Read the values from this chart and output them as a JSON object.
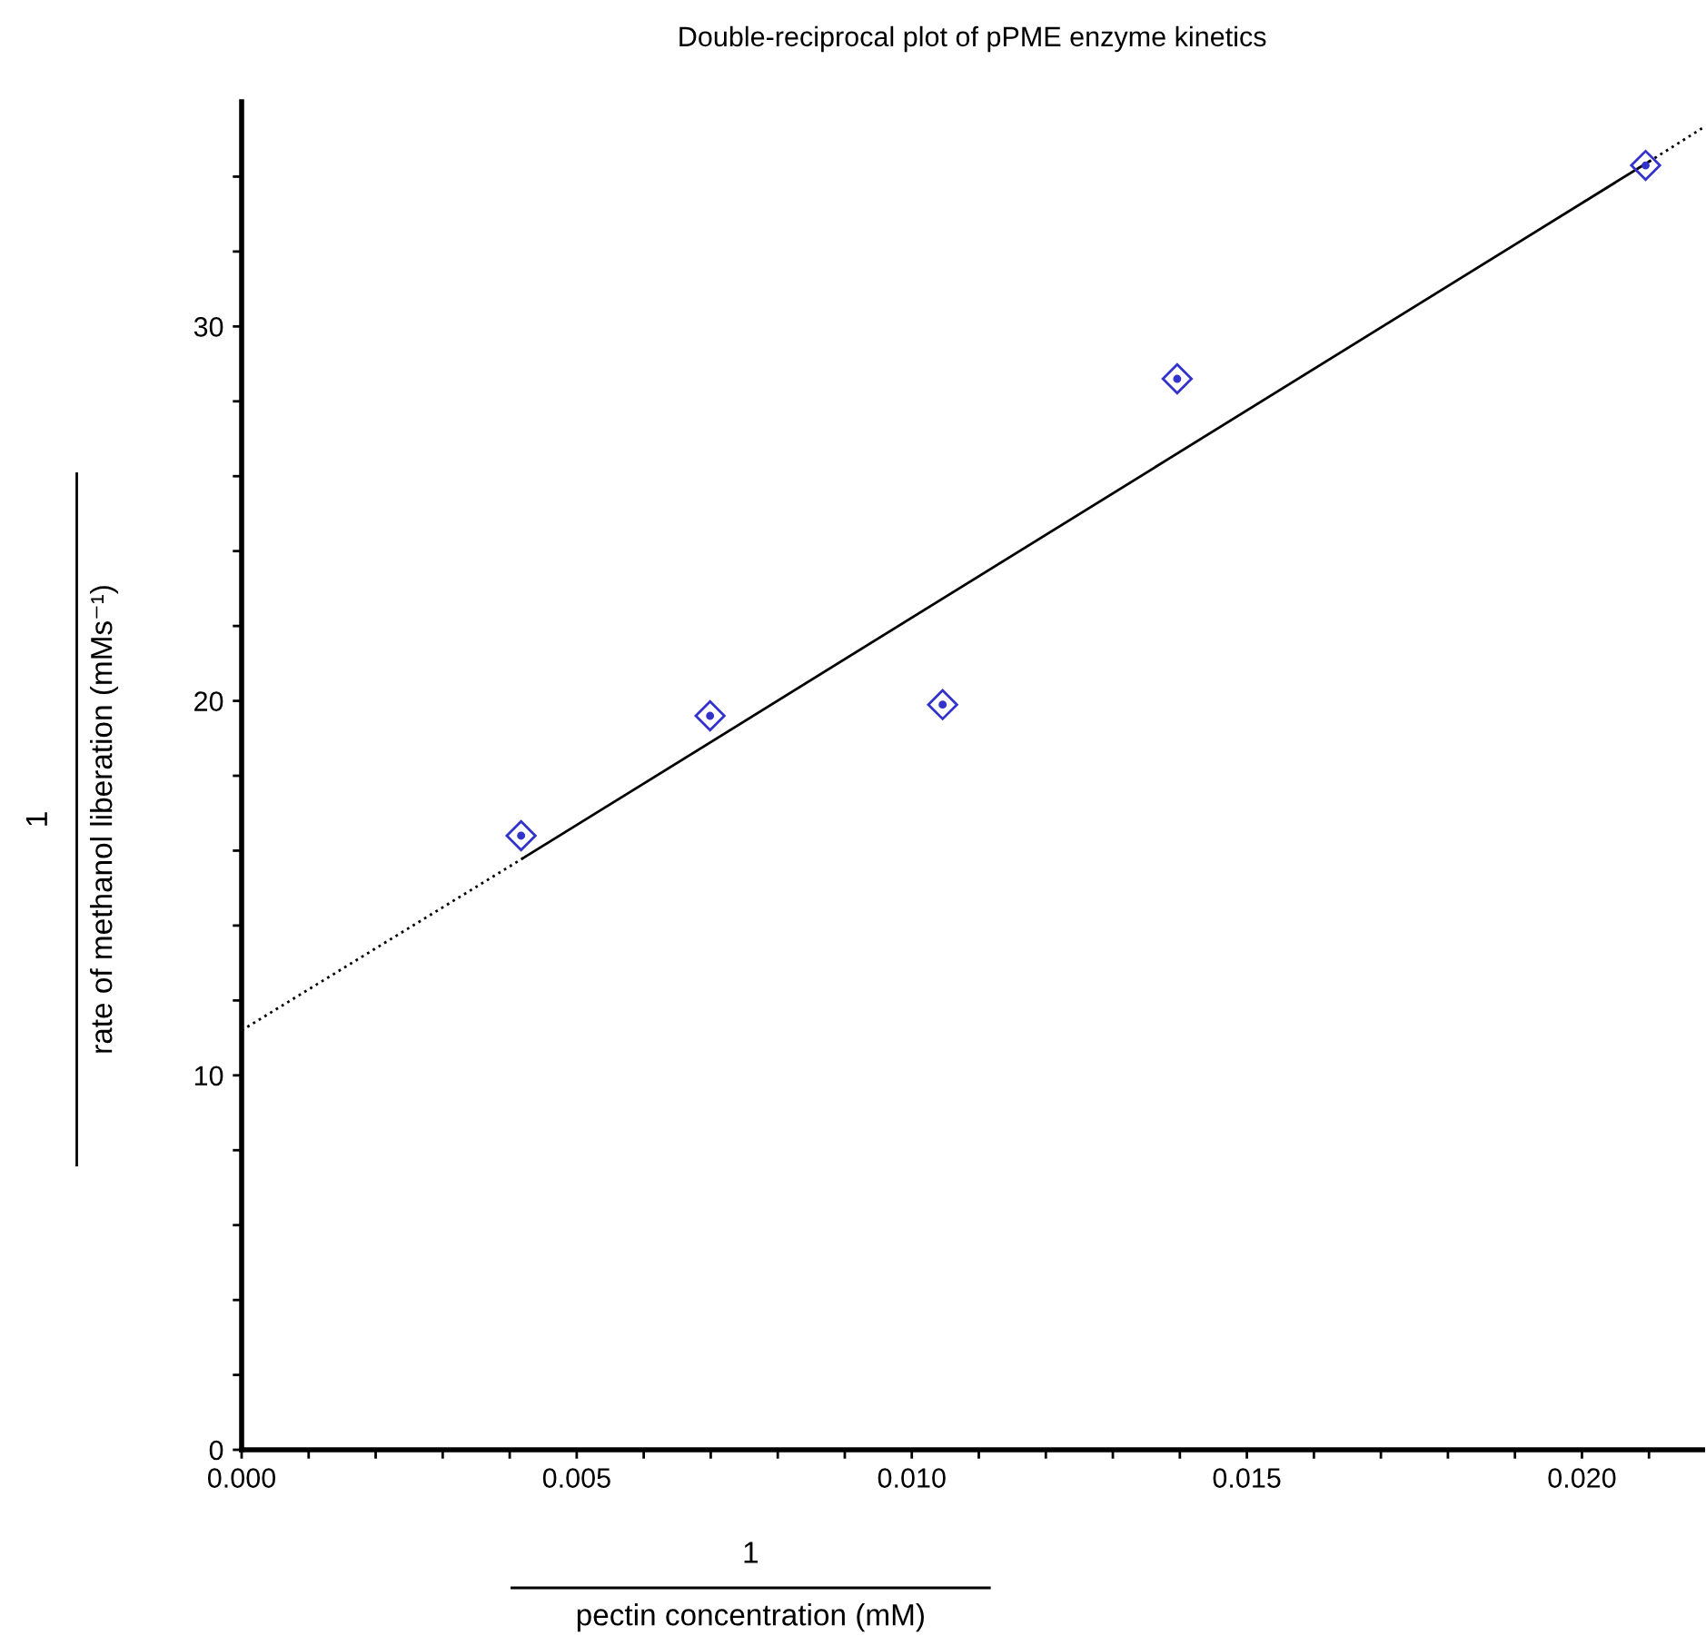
{
  "chart_data": {
    "type": "scatter",
    "title": "Double-reciprocal plot of pPME enzyme kinetics",
    "xlabel": "1\npectin concentration (mM)",
    "ylabel": "1\nrate of methanol liberation (mMs⁻¹)",
    "series": [
      {
        "color": "#3333cc",
        "marker": "diamond",
        "x": [
          0.00417,
          0.00699,
          0.01046,
          0.01396,
          0.02095
        ],
        "values": [
          16.4,
          19.6,
          19.9,
          28.6,
          34.3
        ]
      },
      {
        "type": "line",
        "color": "#000000",
        "line_style": "solid",
        "x": [
          0.0042,
          0.021
        ],
        "values": [
          15.8,
          34.4
        ]
      },
      {
        "type": "line",
        "color": "#000000",
        "line_style": "dotted",
        "x": [
          0,
          0.0042,
          0.0126,
          0.021,
          0.0218
        ],
        "values": [
          11.2,
          15.8,
          null,
          34.4,
          35.3
        ]
      }
    ],
    "xlim": [
      0,
      0.0218
    ],
    "ylim": [
      0,
      36
    ],
    "xticks": [
      {
        "value": 0,
        "label": "0.000"
      },
      {
        "value": 0.001,
        "label": null
      },
      {
        "value": 0.002,
        "label": null
      },
      {
        "value": 0.003,
        "label": null
      },
      {
        "value": 0.004,
        "label": null
      },
      {
        "value": 0.005,
        "label": "0.005"
      },
      {
        "value": 0.006,
        "label": null
      },
      {
        "value": 0.007,
        "label": null
      },
      {
        "value": 0.008,
        "label": null
      },
      {
        "value": 0.009,
        "label": null
      },
      {
        "value": 0.01,
        "label": "0.010"
      },
      {
        "value": 0.011,
        "label": null
      },
      {
        "value": 0.012,
        "label": null
      },
      {
        "value": 0.013,
        "label": null
      },
      {
        "value": 0.014,
        "label": null
      },
      {
        "value": 0.015,
        "label": "0.015"
      },
      {
        "value": 0.016,
        "label": null
      },
      {
        "value": 0.017,
        "label": null
      },
      {
        "value": 0.018,
        "label": null
      },
      {
        "value": 0.019,
        "label": null
      },
      {
        "value": 0.02,
        "label": "0.020"
      },
      {
        "value": 0.021,
        "label": null
      }
    ],
    "yticks": [
      0,
      {
        "value": 2,
        "label": null
      },
      {
        "value": 4,
        "label": null
      },
      {
        "value": 6,
        "label": null
      },
      {
        "value": 8,
        "label": null
      },
      10,
      {
        "value": 12,
        "label": null
      },
      {
        "value": 14,
        "label": null
      },
      {
        "value": 16,
        "label": null
      },
      {
        "value": 18,
        "label": null
      },
      20,
      {
        "value": 22,
        "label": null
      },
      {
        "value": 24,
        "label": null
      },
      {
        "value": 26,
        "label": null
      },
      {
        "value": 28,
        "label": null
      },
      30,
      {
        "value": 32,
        "label": null
      },
      {
        "value": 34,
        "label": null
      }
    ],
    "grid": false,
    "legend": false
  }
}
